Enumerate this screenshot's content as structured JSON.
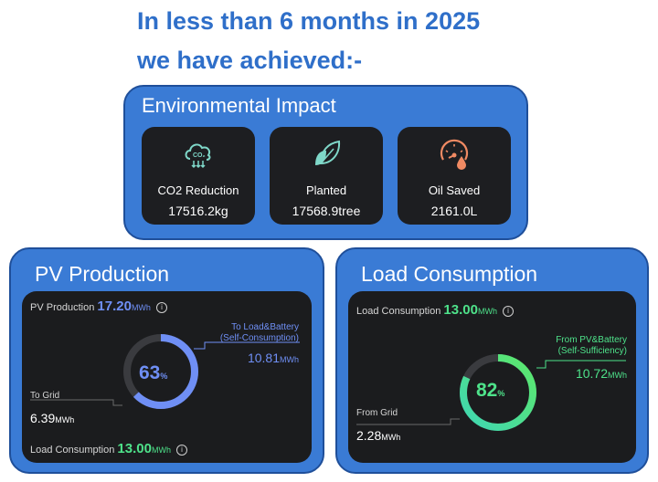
{
  "headline": {
    "line1": "In less than 6 months in 2025",
    "line2": "we have achieved:-"
  },
  "environmental": {
    "title": "Environmental Impact",
    "tiles": [
      {
        "icon": "co2-cloud-icon",
        "label": "CO2 Reduction",
        "value": "17516.2kg"
      },
      {
        "icon": "leaf-icon",
        "label": "Planted",
        "value": "17568.9tree"
      },
      {
        "icon": "oil-gauge-icon",
        "label": "Oil Saved",
        "value": "2161.0L"
      }
    ]
  },
  "pv_production": {
    "title": "PV Production",
    "production_label": "PV Production",
    "production_value": "17.20",
    "production_unit": "MWh",
    "percent": "63",
    "percent_fraction": 0.63,
    "percent_unit": "%",
    "self_label_1": "To Load&Battery",
    "self_label_2": "(Self-Consumption)",
    "self_value": "10.81",
    "self_unit": "MWh",
    "grid_label": "To Grid",
    "grid_value": "6.39",
    "grid_unit": "MWh",
    "consumption_label": "Load Consumption",
    "consumption_value": "13.00",
    "consumption_unit": "MWh",
    "info_glyph": "i"
  },
  "load_consumption": {
    "title": "Load Consumption",
    "consumption_label": "Load Consumption",
    "consumption_value": "13.00",
    "consumption_unit": "MWh",
    "percent": "82",
    "percent_fraction": 0.82,
    "percent_unit": "%",
    "self_label_1": "From PV&Battery",
    "self_label_2": "(Self-Sufficiency)",
    "self_value": "10.72",
    "self_unit": "MWh",
    "grid_label": "From Grid",
    "grid_value": "2.28",
    "grid_unit": "MWh",
    "info_glyph": "i"
  },
  "colors": {
    "headline": "#2f6fc9",
    "panel": "#3a7bd5",
    "pv_accent": "#6f8ff5",
    "load_accent": "#4ee28a",
    "track": "#3a3b3f",
    "icon_teal": "#7fd8c9",
    "icon_orange": "#f08a63"
  }
}
